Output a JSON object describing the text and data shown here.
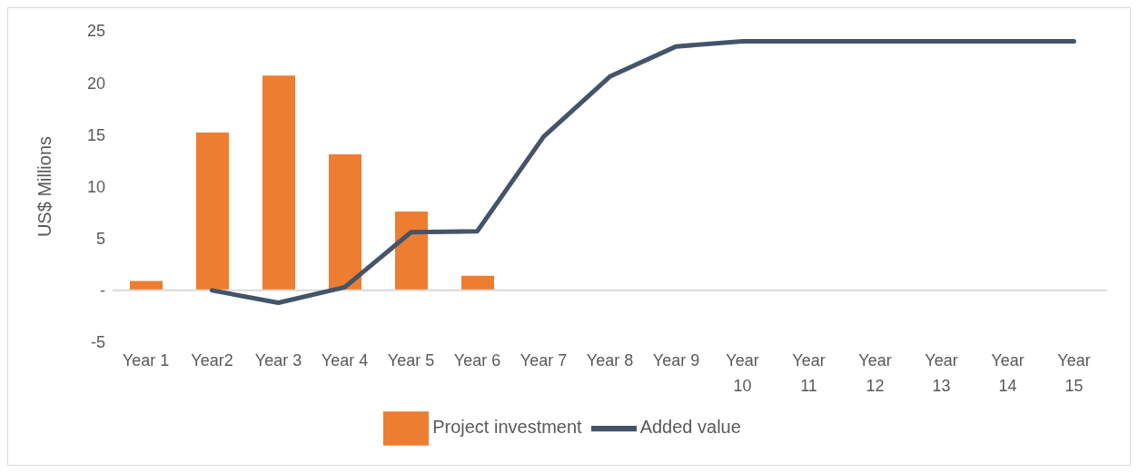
{
  "chart_data": {
    "type": "bar",
    "ylabel": "US$ Millions",
    "categories": [
      "Year 1",
      "Year2",
      "Year 3",
      "Year 4",
      "Year 5",
      "Year 6",
      "Year 7",
      "Year 8",
      "Year 9",
      "Year 10",
      "Year 11",
      "Year 12",
      "Year 13",
      "Year 14",
      "Year 15"
    ],
    "series": [
      {
        "name": "Project investment",
        "color": "#ed7d31",
        "values": [
          0.9,
          15.2,
          20.7,
          13.1,
          7.6,
          1.4,
          null,
          null,
          null,
          null,
          null,
          null,
          null,
          null,
          null
        ]
      },
      {
        "name": "Added value",
        "type": "line",
        "color": "#44546a",
        "values": [
          null,
          0,
          -1.2,
          0.3,
          5.6,
          5.7,
          14.8,
          20.6,
          23.5,
          24,
          24,
          24,
          24,
          24,
          24
        ]
      }
    ],
    "ylim": [
      -5,
      25
    ],
    "yticks": [
      -5,
      {
        "value": 0,
        "label": "-"
      },
      5,
      10,
      15,
      20,
      25
    ],
    "ref_lines": [
      {
        "axis": "y",
        "value": 0,
        "color": "#d9d9d9"
      }
    ],
    "grid": false,
    "legend": "bottom",
    "marker": "none",
    "line_style": "solid"
  }
}
